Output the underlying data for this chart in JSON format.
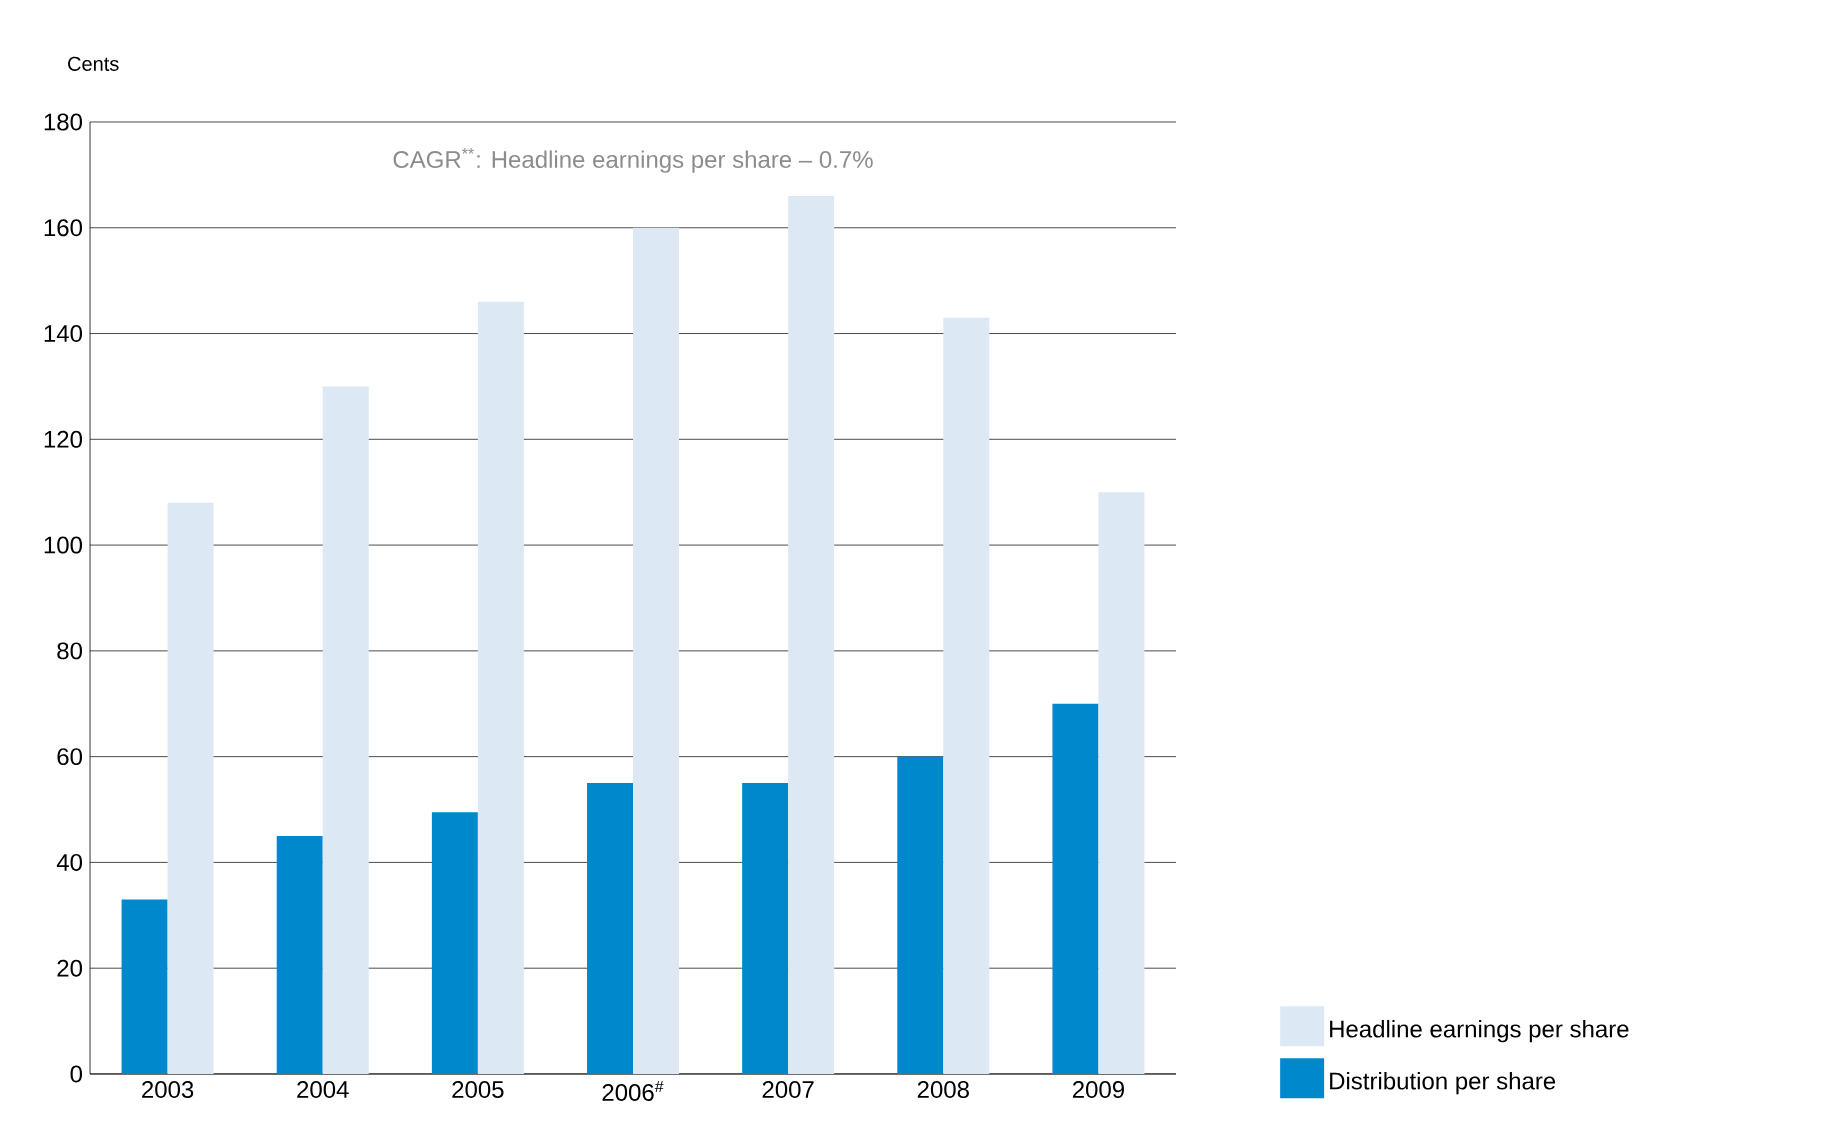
{
  "chart_data": {
    "type": "bar",
    "ylabel": "Cents",
    "annotations": [
      "CAGR$^{**}$: Headline earnings per share – 0.7%"
    ],
    "categories": [
      "2003",
      "2004",
      "2005",
      "2006$^{#}$",
      "2007",
      "2008",
      "2009"
    ],
    "series": [
      {
        "name": "Distribution per share",
        "color": "#0088cc",
        "values": [
          33,
          45,
          49.5,
          55,
          55,
          60,
          70
        ]
      },
      {
        "name": "Headline earnings per share",
        "color": "#dde8f5",
        "values": [
          108,
          130,
          146,
          160,
          166,
          143,
          110
        ]
      }
    ],
    "ylim": [
      0,
      180
    ],
    "yticks": [
      0,
      20,
      40,
      60,
      80,
      100,
      120,
      140,
      160,
      180
    ],
    "grid": "y",
    "legend": "bottom right"
  }
}
